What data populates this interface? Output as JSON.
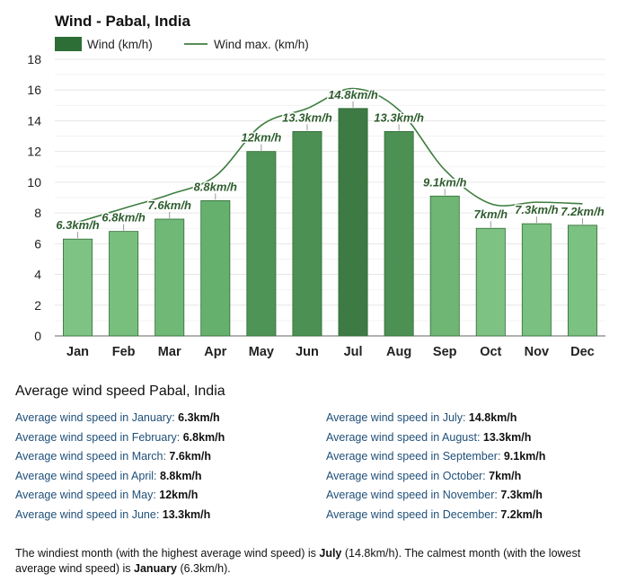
{
  "chart_data": {
    "type": "bar",
    "title": "Wind - Pabal, India",
    "categories": [
      "Jan",
      "Feb",
      "Mar",
      "Apr",
      "May",
      "Jun",
      "Jul",
      "Aug",
      "Sep",
      "Oct",
      "Nov",
      "Dec"
    ],
    "series": [
      {
        "name": "Wind (km/h)",
        "type": "bar",
        "values": [
          6.3,
          6.8,
          7.6,
          8.8,
          12,
          13.3,
          14.8,
          13.3,
          9.1,
          7,
          7.3,
          7.2
        ]
      },
      {
        "name": "Wind max. (km/h)",
        "type": "line",
        "values": [
          7.4,
          8.3,
          9.2,
          10.4,
          13.7,
          14.8,
          16.1,
          14.7,
          10.8,
          8.6,
          8.7,
          8.6
        ]
      }
    ],
    "data_labels": [
      "6.3km/h",
      "6.8km/h",
      "7.6km/h",
      "8.8km/h",
      "12km/h",
      "13.3km/h",
      "14.8km/h",
      "13.3km/h",
      "9.1km/h",
      "7km/h",
      "7.3km/h",
      "7.2km/h"
    ],
    "ylim": [
      0,
      18
    ],
    "yticks": [
      0,
      2,
      4,
      6,
      8,
      10,
      12,
      14,
      16,
      18
    ],
    "grid": true,
    "legend": "top-left",
    "colors": {
      "bar_fill": [
        "#7fc384",
        "#78bf7e",
        "#70b876",
        "#66b06d",
        "#4f9457",
        "#4c9053",
        "#3d7a44",
        "#4c9053",
        "#6fb574",
        "#7dc282",
        "#7ac080",
        "#7bc181"
      ],
      "legend_bar": "#2c6e36",
      "line": "#3e7d3f",
      "label": "#2f5d2f"
    }
  },
  "stats": {
    "heading": "Average wind speed Pabal, India",
    "left": [
      {
        "label": "Average wind speed in January: ",
        "value": "6.3km/h"
      },
      {
        "label": "Average wind speed in February: ",
        "value": "6.8km/h"
      },
      {
        "label": "Average wind speed in March: ",
        "value": "7.6km/h"
      },
      {
        "label": "Average wind speed in April: ",
        "value": "8.8km/h"
      },
      {
        "label": "Average wind speed in May: ",
        "value": "12km/h"
      },
      {
        "label": "Average wind speed in June: ",
        "value": "13.3km/h"
      }
    ],
    "right": [
      {
        "label": "Average wind speed in July: ",
        "value": "14.8km/h"
      },
      {
        "label": "Average wind speed in August: ",
        "value": "13.3km/h"
      },
      {
        "label": "Average wind speed in September: ",
        "value": "9.1km/h"
      },
      {
        "label": "Average wind speed in October: ",
        "value": "7km/h"
      },
      {
        "label": "Average wind speed in November: ",
        "value": "7.3km/h"
      },
      {
        "label": "Average wind speed in December: ",
        "value": "7.2km/h"
      }
    ]
  },
  "summary": {
    "part1": "The windiest month (with the highest average wind speed) is ",
    "month_high": "July",
    "part2": " (14.8km/h). The calmest month (with the lowest average wind speed) is ",
    "month_low": "January",
    "part3": " (6.3km/h)."
  }
}
